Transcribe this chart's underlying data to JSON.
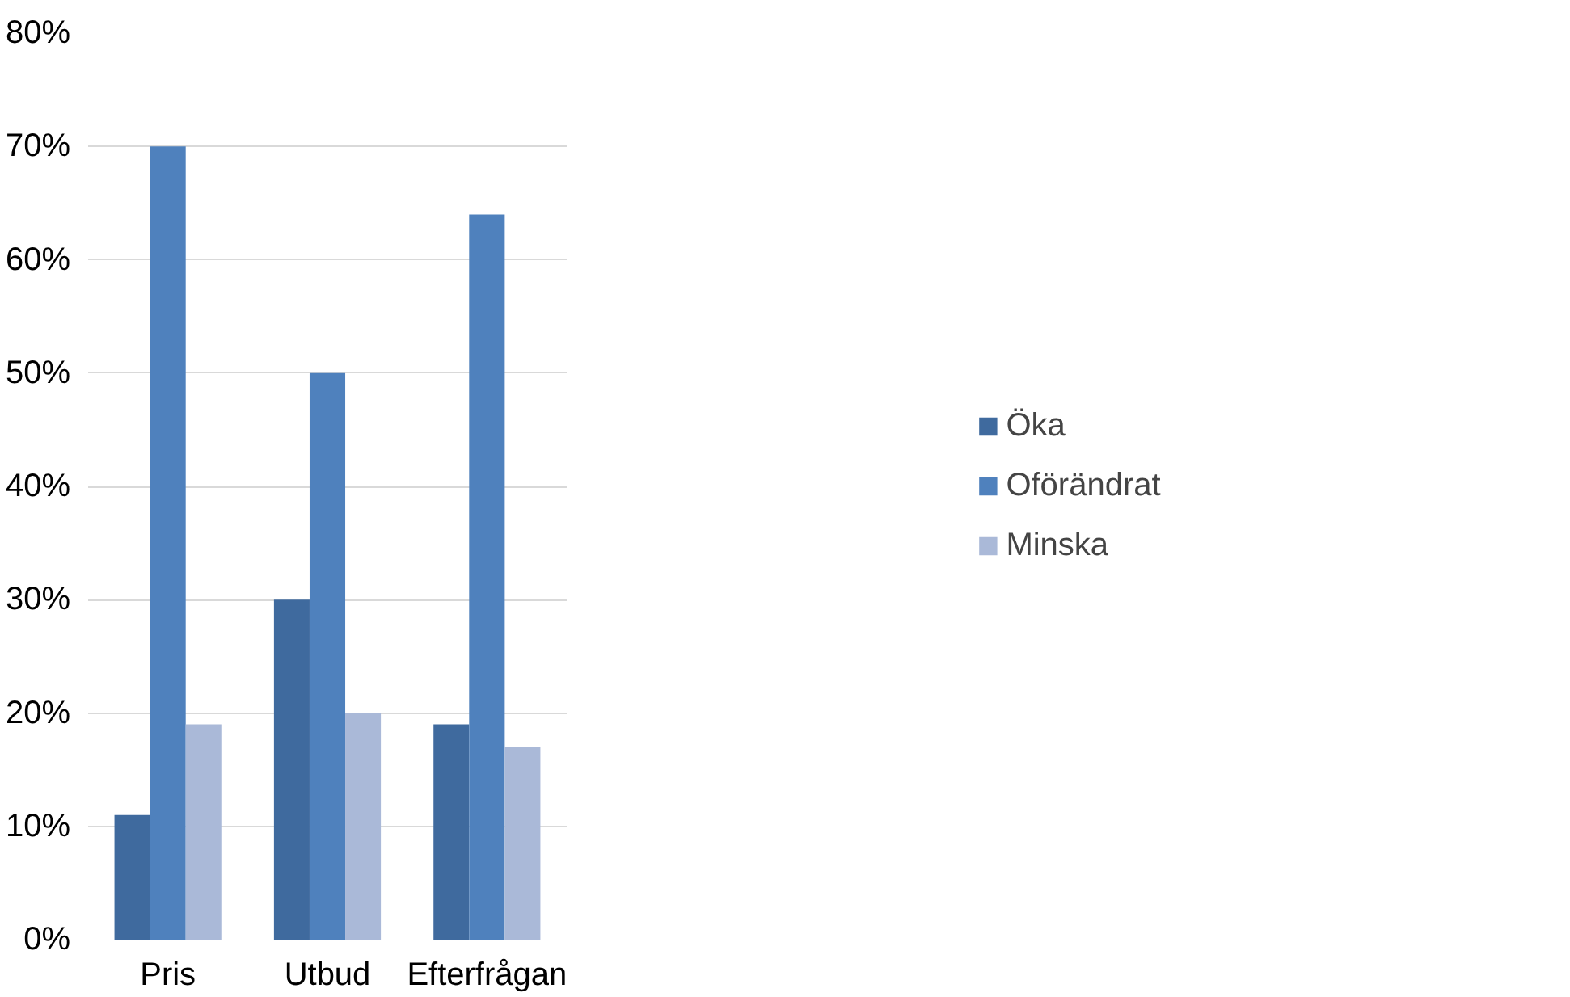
{
  "chart_data": {
    "type": "bar",
    "categories": [
      "Pris",
      "Utbud",
      "Efterfrågan"
    ],
    "series": [
      {
        "name": "Öka",
        "color": "#3f6a9e",
        "values": [
          11,
          30,
          19
        ]
      },
      {
        "name": "Oförändrat",
        "color": "#4f81bd",
        "values": [
          70,
          50,
          64
        ]
      },
      {
        "name": "Minska",
        "color": "#aab9d8",
        "values": [
          19,
          20,
          17
        ]
      }
    ],
    "ylim": [
      0,
      80
    ],
    "yticks": [
      {
        "value": 0,
        "label": "0%"
      },
      {
        "value": 10,
        "label": "10%"
      },
      {
        "value": 20,
        "label": "20%"
      },
      {
        "value": 30,
        "label": "30%"
      },
      {
        "value": 40,
        "label": "40%"
      },
      {
        "value": 50,
        "label": "50%"
      },
      {
        "value": 60,
        "label": "60%"
      },
      {
        "value": 70,
        "label": "70%"
      },
      {
        "value": 80,
        "label": "80%"
      }
    ],
    "grid": "y",
    "legend": "right"
  }
}
